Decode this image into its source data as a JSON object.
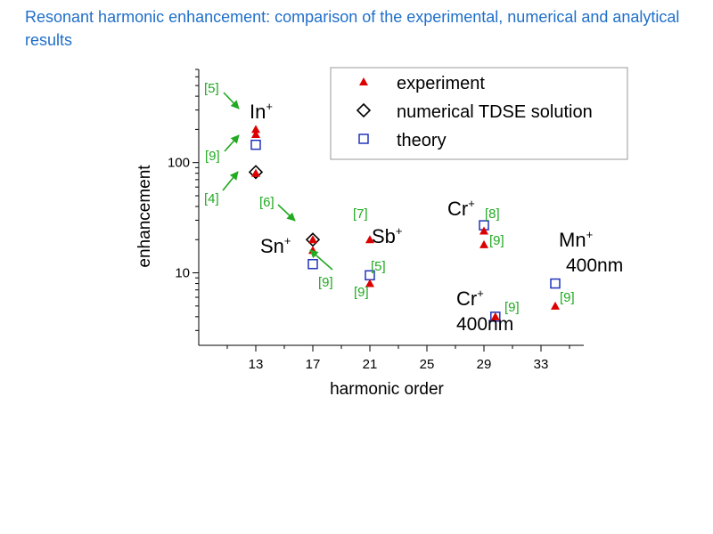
{
  "slide": {
    "title": "Resonant harmonic enhancement: comparison of the experimental, numerical and analytical results"
  },
  "colors": {
    "title": "#1f6fc9",
    "experiment": "#dd0000",
    "theory": "#2233bb",
    "numerical": "#000000",
    "reference": "#22aa22"
  },
  "chart_data": {
    "type": "scatter",
    "xlabel": "harmonic order",
    "ylabel": "enhancement",
    "y_scale": "log",
    "xlim": [
      9,
      36
    ],
    "ylim": [
      2.2,
      700
    ],
    "x_ticks": [
      13,
      17,
      21,
      25,
      29,
      33
    ],
    "y_ticks": [
      {
        "value": 10,
        "label": "10"
      },
      {
        "value": 100,
        "label": "100"
      }
    ],
    "grid": false,
    "legend_position": "top-right",
    "series": [
      {
        "name": "experiment",
        "marker": "triangle",
        "color": "#dd0000",
        "points": [
          [
            13,
            200
          ],
          [
            13,
            180
          ],
          [
            13,
            80
          ],
          [
            17,
            20
          ],
          [
            17,
            16
          ],
          [
            21,
            20
          ],
          [
            21,
            8
          ],
          [
            29,
            24
          ],
          [
            29,
            18
          ],
          [
            29.8,
            4
          ],
          [
            34,
            5
          ]
        ]
      },
      {
        "name": "numerical TDSE solution",
        "marker": "diamond",
        "color": "#000000",
        "points": [
          [
            13,
            82
          ],
          [
            17,
            20
          ]
        ]
      },
      {
        "name": "theory",
        "marker": "square",
        "color": "#2233bb",
        "points": [
          [
            13,
            145
          ],
          [
            17,
            12
          ],
          [
            21,
            9.5
          ],
          [
            29,
            27
          ],
          [
            29.8,
            4
          ],
          [
            34,
            8
          ]
        ]
      }
    ],
    "ion_labels": [
      {
        "base": "In",
        "charge": "+",
        "sub": ""
      },
      {
        "base": "Sn",
        "charge": "+",
        "sub": ""
      },
      {
        "base": "Sb",
        "charge": "+",
        "sub": ""
      },
      {
        "base": "Cr",
        "charge": "+",
        "sub": ""
      },
      {
        "base": "Cr",
        "charge": "+",
        "sub": "400nm"
      },
      {
        "base": "Mn",
        "charge": "+",
        "sub": "400nm"
      }
    ],
    "reference_labels": [
      "[5]",
      "[9]",
      "[4]",
      "[6]",
      "[9]",
      "[7]",
      "[5]",
      "[9]",
      "[8]",
      "[9]",
      "[9]",
      "[9]"
    ]
  }
}
